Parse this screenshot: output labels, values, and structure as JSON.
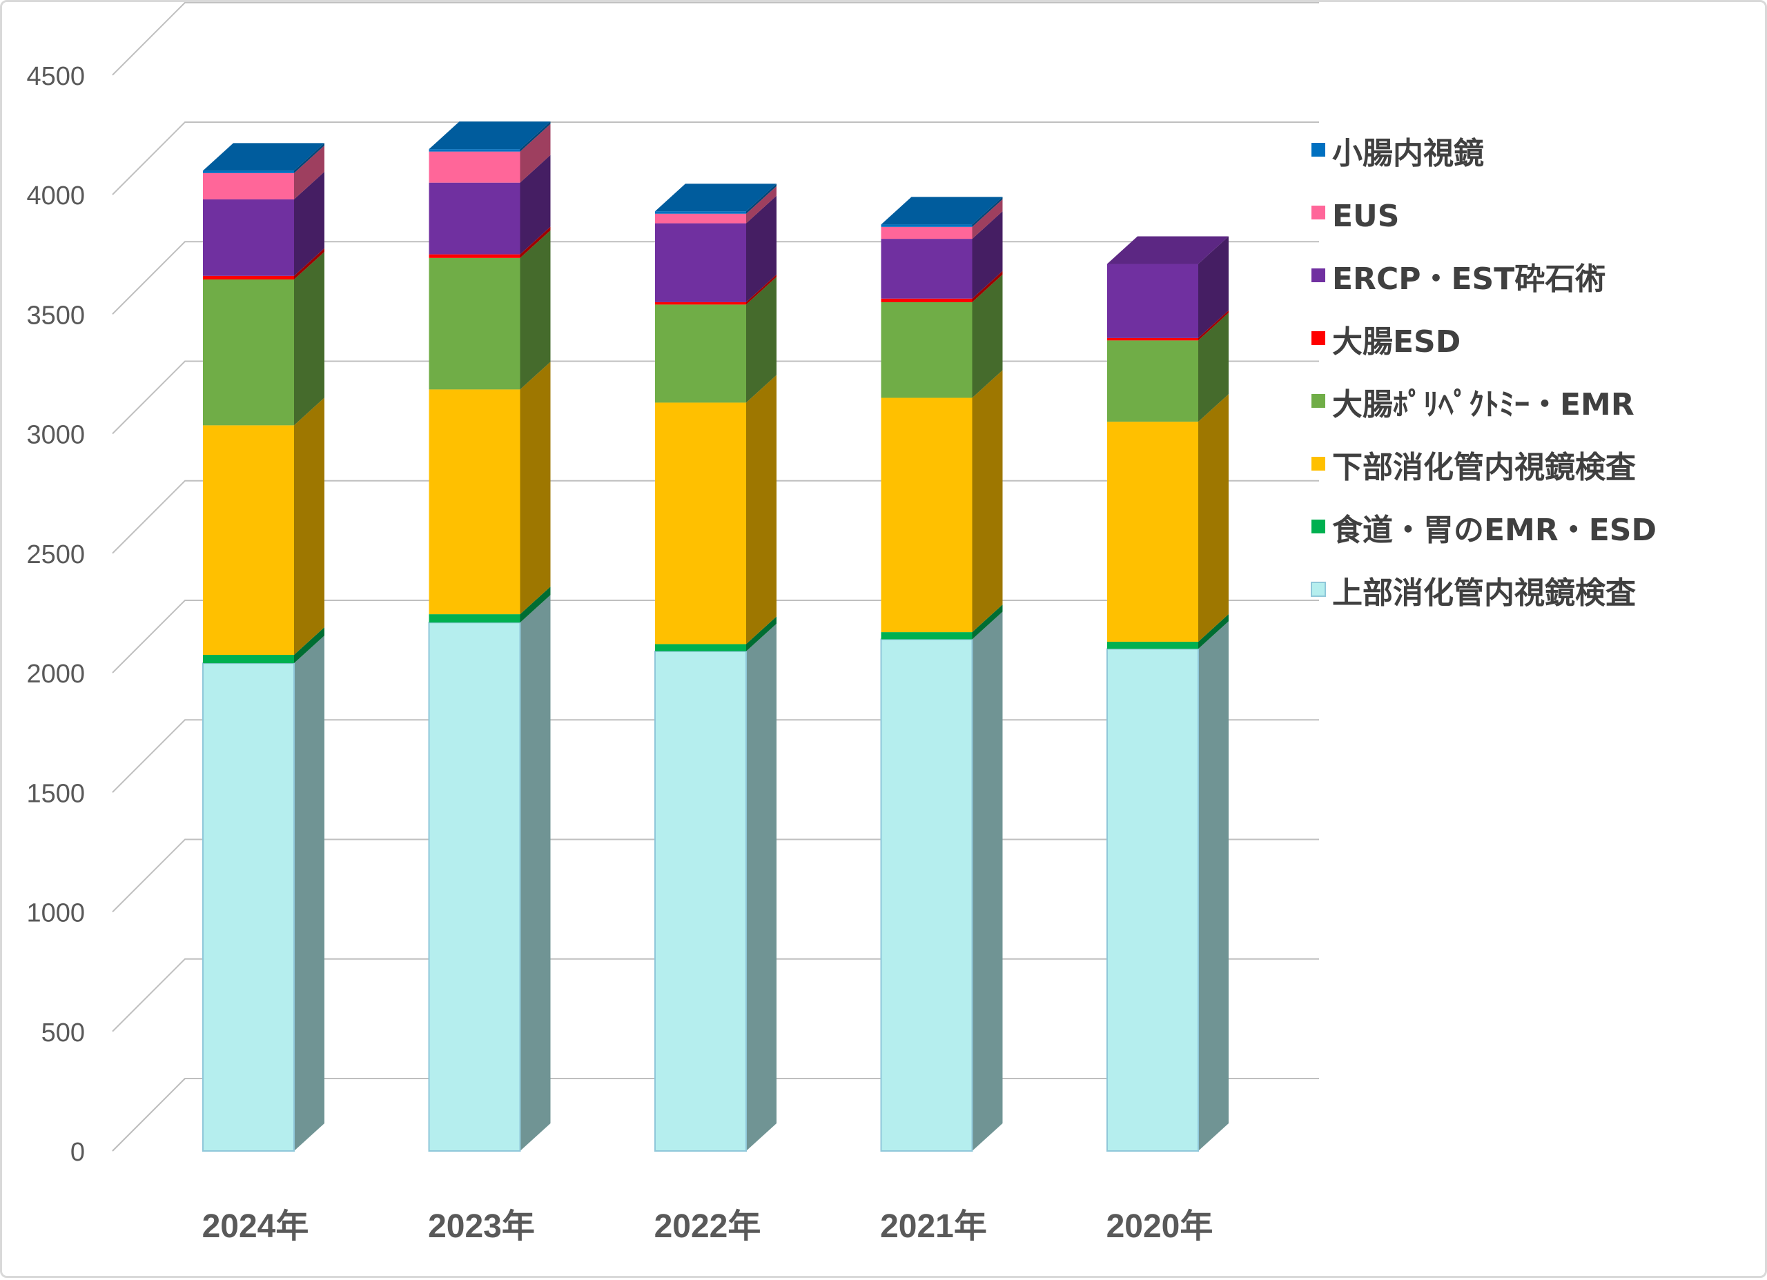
{
  "chart_data": {
    "type": "bar",
    "stacked": true,
    "three_d": true,
    "categories": [
      "2024年",
      "2023年",
      "2022年",
      "2021年",
      "2020年"
    ],
    "ylim": [
      0,
      4500
    ],
    "yticks": [
      0,
      500,
      1000,
      1500,
      2000,
      2500,
      3000,
      3500,
      4000,
      4500
    ],
    "grid": true,
    "legend_position": "right",
    "series": [
      {
        "name": "上部消化管内視鏡検査",
        "color": "#b5eeee",
        "values": [
          2040,
          2210,
          2090,
          2140,
          2100
        ]
      },
      {
        "name": "食道・胃のEMR・ESD",
        "color": "#00b050",
        "values": [
          35,
          35,
          30,
          30,
          30
        ]
      },
      {
        "name": "下部消化管内視鏡検査",
        "color": "#ffc000",
        "values": [
          960,
          940,
          1010,
          980,
          920
        ]
      },
      {
        "name": "大腸ﾎﾟﾘﾍﾟｸﾄﾐｰ・EMR",
        "color": "#70ad47",
        "values": [
          610,
          550,
          410,
          400,
          340
        ]
      },
      {
        "name": "大腸ESD",
        "color": "#ff0000",
        "values": [
          15,
          15,
          10,
          15,
          10
        ]
      },
      {
        "name": "ERCP・EST砕石術",
        "color": "#7030a0",
        "values": [
          320,
          300,
          330,
          250,
          310
        ]
      },
      {
        "name": "EUS",
        "color": "#ff6699",
        "values": [
          110,
          130,
          40,
          50,
          0
        ]
      },
      {
        "name": "小腸内視鏡",
        "color": "#0070c0",
        "values": [
          10,
          10,
          10,
          10,
          0
        ]
      }
    ]
  }
}
